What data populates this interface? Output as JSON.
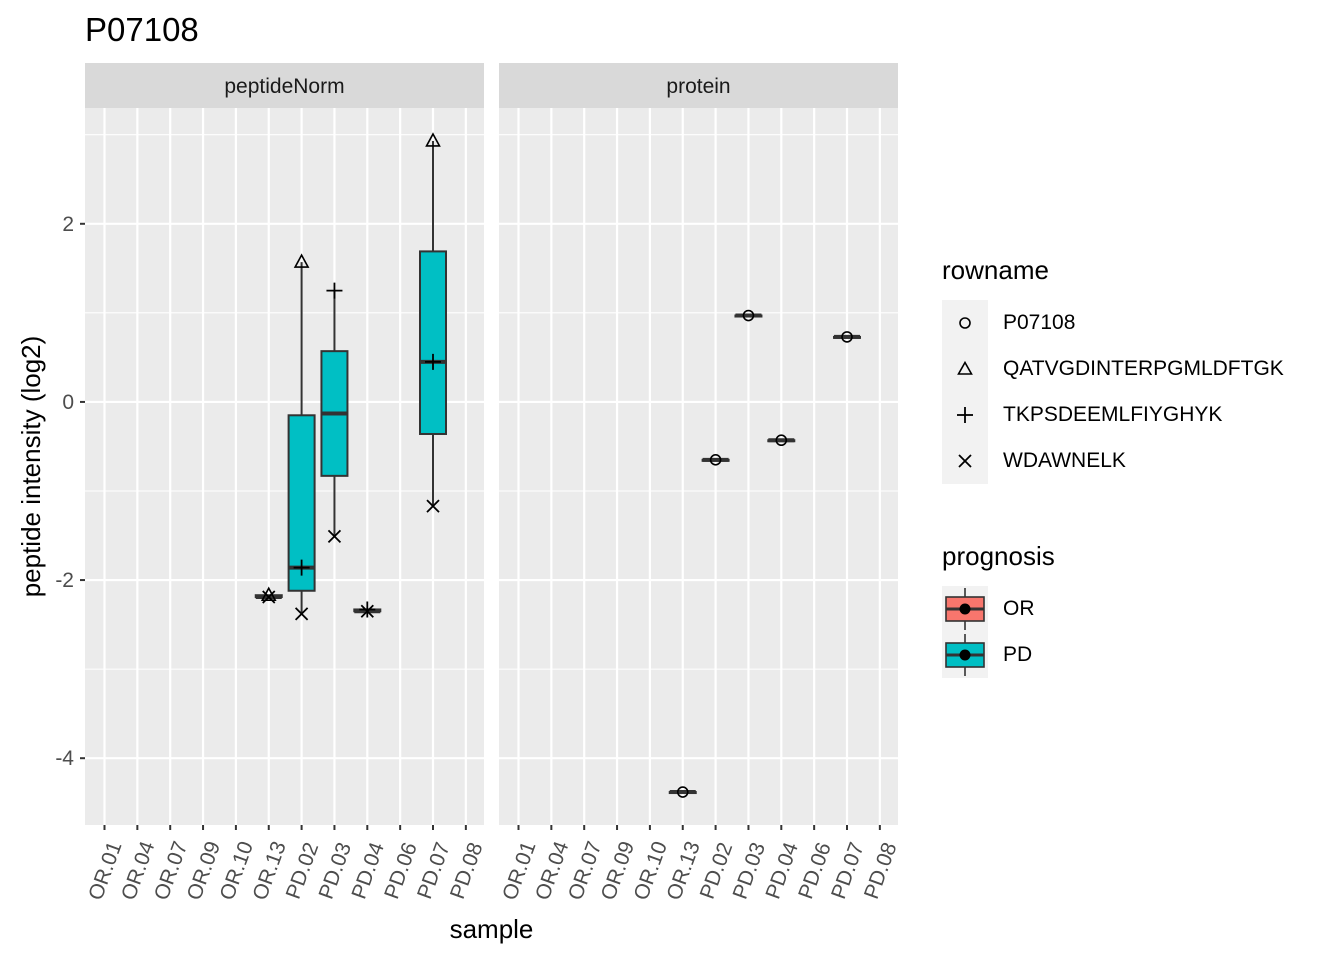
{
  "chart_data": {
    "type": "boxplot",
    "title": "P07108",
    "xlabel": "sample",
    "ylabel": "peptide intensity (log2)",
    "ylim": [
      -4.75,
      3.3
    ],
    "yticks": [
      -4,
      -2,
      0,
      2
    ],
    "categories": [
      "OR.01",
      "OR.04",
      "OR.07",
      "OR.09",
      "OR.10",
      "OR.13",
      "PD.02",
      "PD.03",
      "PD.04",
      "PD.06",
      "PD.07",
      "PD.08"
    ],
    "colors": {
      "OR": "#F8766D",
      "PD": "#00BFC4",
      "panel_bg": "#EBEBEB",
      "strip_bg": "#D9D9D9",
      "grid": "#FFFFFF"
    },
    "panels": [
      {
        "strip": "peptideNorm",
        "boxes": [
          {
            "sample": "OR.13",
            "prognosis": "PD",
            "min": -2.19,
            "q1": -2.19,
            "median": -2.19,
            "q3": -2.17,
            "max": -2.17
          },
          {
            "sample": "PD.02",
            "prognosis": "PD",
            "min": -2.38,
            "q1": -2.12,
            "median": -1.86,
            "q3": -0.15,
            "max": 1.57
          },
          {
            "sample": "PD.03",
            "prognosis": "PD",
            "min": -1.51,
            "q1": -0.83,
            "median": -0.13,
            "q3": 0.57,
            "max": 1.25
          },
          {
            "sample": "PD.04",
            "prognosis": "PD",
            "min": -2.35,
            "q1": -2.35,
            "median": -2.35,
            "q3": -2.33,
            "max": -2.33
          },
          {
            "sample": "PD.07",
            "prognosis": "PD",
            "min": -1.17,
            "q1": -0.36,
            "median": 0.45,
            "q3": 1.69,
            "max": 2.93
          }
        ],
        "points": [
          {
            "sample": "OR.13",
            "shape": "triangle",
            "y": -2.17
          },
          {
            "sample": "OR.13",
            "shape": "cross",
            "y": -2.19
          },
          {
            "sample": "PD.02",
            "shape": "triangle",
            "y": 1.57
          },
          {
            "sample": "PD.02",
            "shape": "plus",
            "y": -1.86
          },
          {
            "sample": "PD.02",
            "shape": "cross",
            "y": -2.38
          },
          {
            "sample": "PD.03",
            "shape": "plus",
            "y": 1.25
          },
          {
            "sample": "PD.03",
            "shape": "cross",
            "y": -1.51
          },
          {
            "sample": "PD.04",
            "shape": "plus",
            "y": -2.33
          },
          {
            "sample": "PD.04",
            "shape": "cross",
            "y": -2.35
          },
          {
            "sample": "PD.07",
            "shape": "triangle",
            "y": 2.93
          },
          {
            "sample": "PD.07",
            "shape": "plus",
            "y": 0.45
          },
          {
            "sample": "PD.07",
            "shape": "cross",
            "y": -1.17
          }
        ]
      },
      {
        "strip": "protein",
        "boxes": [
          {
            "sample": "OR.13",
            "prognosis": "PD",
            "min": -4.38,
            "q1": -4.38,
            "median": -4.38,
            "q3": -4.38,
            "max": -4.38
          },
          {
            "sample": "PD.02",
            "prognosis": "PD",
            "min": -0.65,
            "q1": -0.65,
            "median": -0.65,
            "q3": -0.65,
            "max": -0.65
          },
          {
            "sample": "PD.03",
            "prognosis": "PD",
            "min": 0.97,
            "q1": 0.97,
            "median": 0.97,
            "q3": 0.97,
            "max": 0.97
          },
          {
            "sample": "PD.04",
            "prognosis": "PD",
            "min": -0.43,
            "q1": -0.43,
            "median": -0.43,
            "q3": -0.43,
            "max": -0.43
          },
          {
            "sample": "PD.07",
            "prognosis": "PD",
            "min": 0.73,
            "q1": 0.73,
            "median": 0.73,
            "q3": 0.73,
            "max": 0.73
          }
        ],
        "points": [
          {
            "sample": "OR.13",
            "shape": "circle",
            "y": -4.38
          },
          {
            "sample": "PD.02",
            "shape": "circle",
            "y": -0.65
          },
          {
            "sample": "PD.03",
            "shape": "circle",
            "y": 0.97
          },
          {
            "sample": "PD.04",
            "shape": "circle",
            "y": -0.43
          },
          {
            "sample": "PD.07",
            "shape": "circle",
            "y": 0.73
          }
        ]
      }
    ],
    "legend_placement": "right",
    "legends": {
      "rowname": {
        "title": "rowname",
        "items": [
          {
            "label": "P07108",
            "shape": "circle"
          },
          {
            "label": "QATVGDINTERPGMLDFTGK",
            "shape": "triangle"
          },
          {
            "label": "TKPSDEEMLFIYGHYK",
            "shape": "plus"
          },
          {
            "label": "WDAWNELK",
            "shape": "cross"
          }
        ]
      },
      "prognosis": {
        "title": "prognosis",
        "items": [
          {
            "label": "OR",
            "color": "#F8766D"
          },
          {
            "label": "PD",
            "color": "#00BFC4"
          }
        ]
      }
    }
  }
}
